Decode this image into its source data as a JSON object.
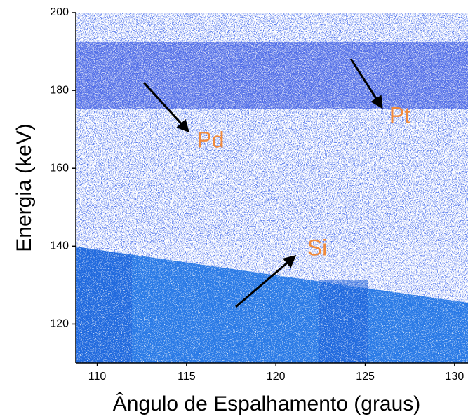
{
  "chart_data": {
    "type": "heatmap",
    "xlabel": "Ângulo de Espalhamento (graus)",
    "ylabel": "Energia (keV)",
    "xlim": [
      108.8,
      130.75
    ],
    "xticks": [
      110,
      115,
      120,
      125,
      130
    ],
    "ylim": [
      110,
      200
    ],
    "yticks": [
      120,
      140,
      160,
      180,
      200
    ],
    "annotations": [
      "Pd",
      "Pt",
      "Si"
    ],
    "color": "#1a3fd0",
    "annotation_color": "#f08a3c"
  }
}
